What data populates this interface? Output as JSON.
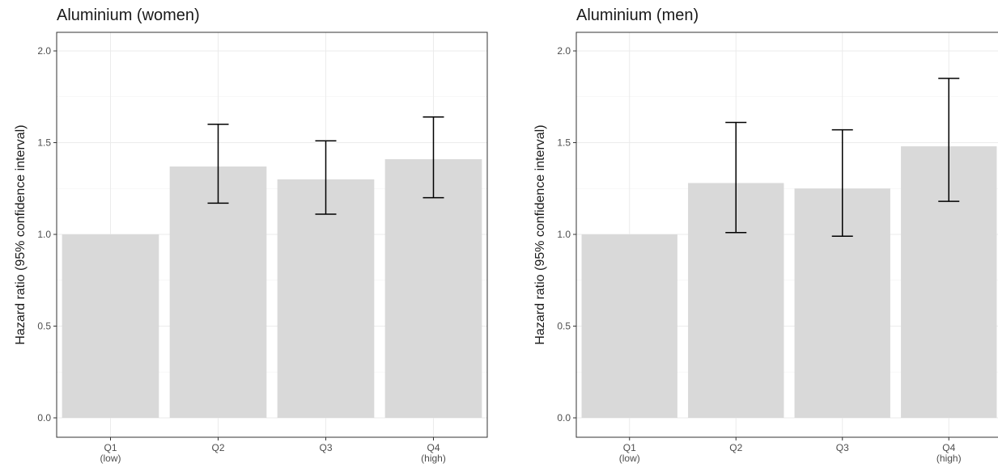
{
  "chart_data": [
    {
      "type": "bar",
      "title": "Aluminium (women)",
      "xlabel": "",
      "ylabel": "Hazard ratio (95% confidence interval)",
      "categories": [
        {
          "name": "Q1",
          "sub": "(low)"
        },
        {
          "name": "Q2",
          "sub": ""
        },
        {
          "name": "Q3",
          "sub": ""
        },
        {
          "name": "Q4",
          "sub": "(high)"
        }
      ],
      "values": [
        1.0,
        1.37,
        1.3,
        1.41
      ],
      "error_low": [
        null,
        1.17,
        1.11,
        1.2
      ],
      "error_high": [
        null,
        1.6,
        1.51,
        1.64
      ],
      "ylim": [
        0,
        2.0
      ],
      "yticks": [
        "0.0",
        "0.5",
        "1.0",
        "1.5",
        "2.0"
      ],
      "grid": true,
      "bar_color": "#d9d9d9"
    },
    {
      "type": "bar",
      "title": "Aluminium (men)",
      "xlabel": "",
      "ylabel": "Hazard ratio (95% confidence interval)",
      "categories": [
        {
          "name": "Q1",
          "sub": "(low)"
        },
        {
          "name": "Q2",
          "sub": ""
        },
        {
          "name": "Q3",
          "sub": ""
        },
        {
          "name": "Q4",
          "sub": "(high)"
        }
      ],
      "values": [
        1.0,
        1.28,
        1.25,
        1.48
      ],
      "error_low": [
        null,
        1.01,
        0.99,
        1.18
      ],
      "error_high": [
        null,
        1.61,
        1.57,
        1.85
      ],
      "ylim": [
        0,
        2.0
      ],
      "yticks": [
        "0.0",
        "0.5",
        "1.0",
        "1.5",
        "2.0"
      ],
      "grid": true,
      "bar_color": "#d9d9d9"
    }
  ]
}
